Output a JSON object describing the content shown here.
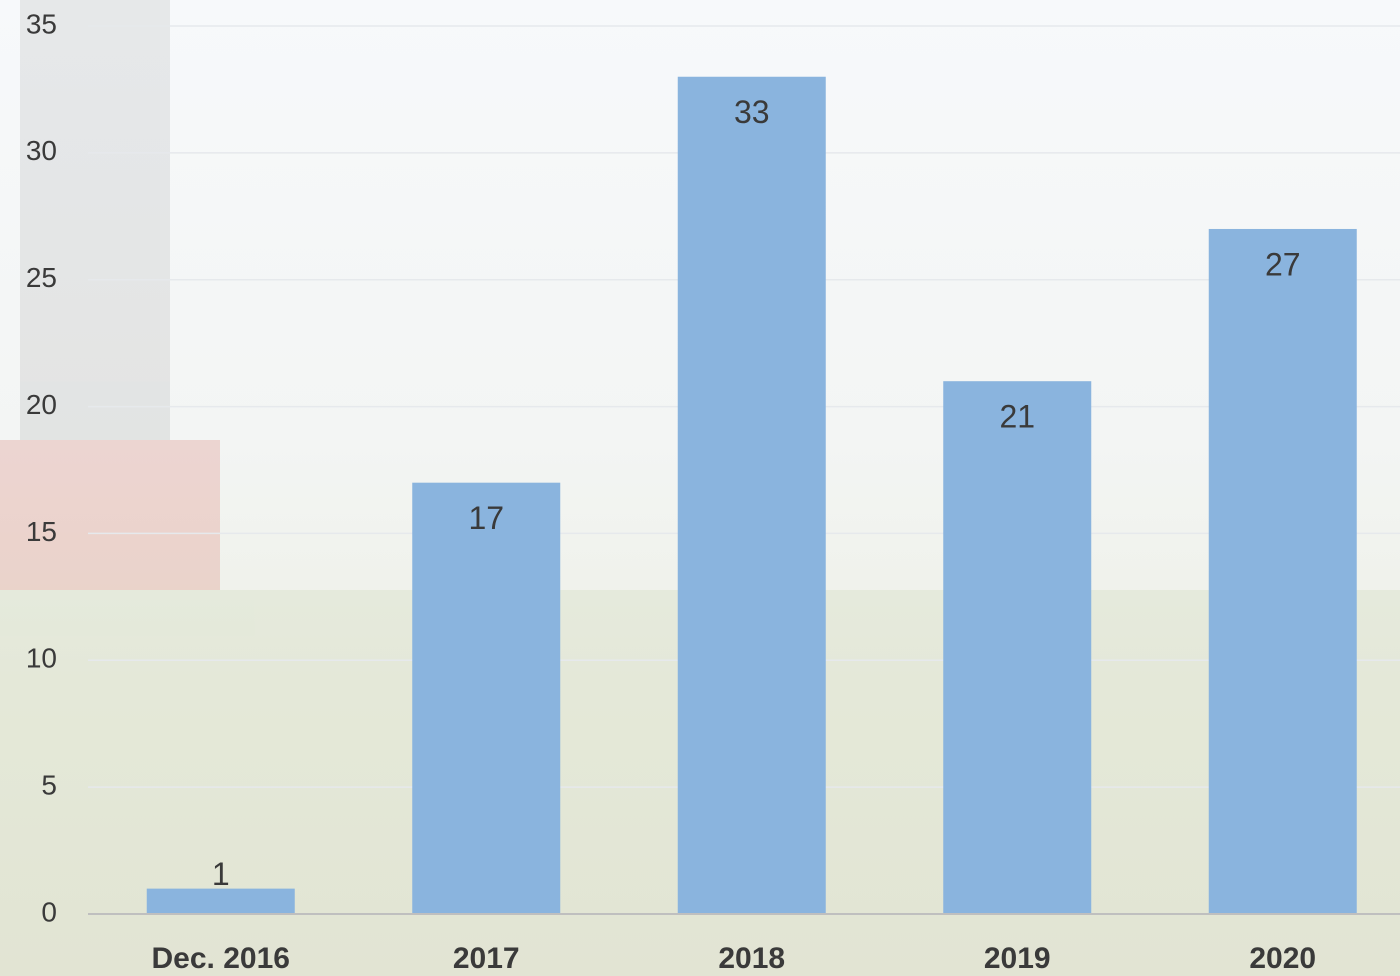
{
  "chart_data": {
    "type": "bar",
    "categories": [
      "Dec. 2016",
      "2017",
      "2018",
      "2019",
      "2020"
    ],
    "values": [
      1,
      17,
      33,
      21,
      27
    ],
    "color": "#8ab4de",
    "ylim": [
      0,
      35
    ],
    "yticks": [
      0,
      5,
      10,
      15,
      20,
      25,
      30,
      35
    ],
    "grid": true
  }
}
